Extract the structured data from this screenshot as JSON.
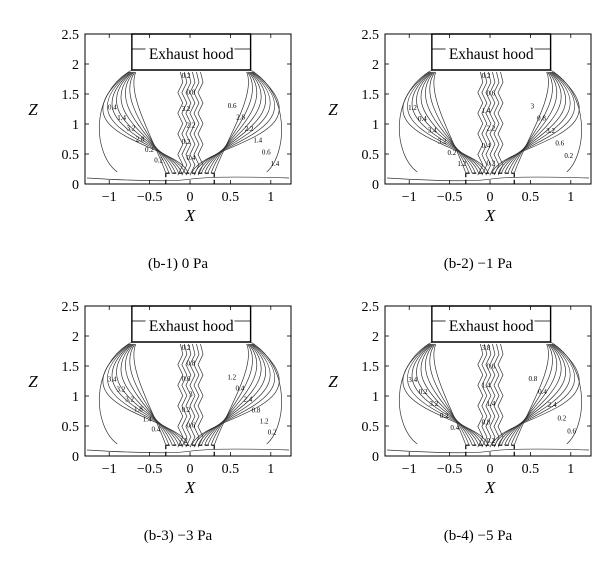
{
  "chart_data": [
    {
      "type": "contour",
      "caption": "(b-1) 0 Pa",
      "hood_label": "Exhaust hood",
      "xlabel": "X",
      "ylabel": "Z",
      "xlim": [
        -1.3,
        1.25
      ],
      "ylim": [
        0,
        2.5
      ],
      "xticks": [
        "-1",
        "-0.5",
        "0",
        "0.5",
        "1"
      ],
      "yticks": [
        "0",
        "0.5",
        "1",
        "1.5",
        "2",
        "2.5"
      ],
      "contour_labels": [
        "0.2",
        "0.4",
        "0.6",
        "0.8",
        "1.4",
        "2.8",
        "3.2",
        "3.2",
        "2.2",
        "2.2",
        "2.8",
        "1.4",
        "0.2",
        "0.2",
        "0.6",
        "0.4",
        "0.2",
        "1.4"
      ]
    },
    {
      "type": "contour",
      "caption": "(b-2) −1 Pa",
      "hood_label": "Exhaust hood",
      "xlabel": "X",
      "ylabel": "Z",
      "xlim": [
        -1.3,
        1.25
      ],
      "ylim": [
        0,
        2.5
      ],
      "xticks": [
        "-1",
        "-0.5",
        "0",
        "0.5",
        "1"
      ],
      "yticks": [
        "0",
        "0.5",
        "1",
        "1.5",
        "2",
        "2.5"
      ],
      "contour_labels": [
        "0.2",
        "1.2",
        "3",
        "0.6",
        "0.4",
        "0.8",
        "1.4",
        "3.4",
        "3.2",
        "2.2",
        "3.2",
        "0.6",
        "0.4",
        "0.2",
        "0.2",
        "0.2",
        "1.2"
      ]
    },
    {
      "type": "contour",
      "caption": "(b-3) −3 Pa",
      "hood_label": "Exhaust hood",
      "xlabel": "X",
      "ylabel": "Z",
      "xlim": [
        -1.3,
        1.25
      ],
      "ylim": [
        0,
        2.5
      ],
      "xticks": [
        "-1",
        "-0.5",
        "0",
        "0.5",
        "1"
      ],
      "yticks": [
        "0",
        "0.5",
        "1",
        "1.5",
        "2",
        "2.5"
      ],
      "contour_labels": [
        "0.2",
        "3.4",
        "1.2",
        "0.8",
        "3.2",
        "0.4",
        "0.6",
        "3.2",
        "2.4",
        "3",
        "1.8",
        "0.8",
        "0.2",
        "1.4",
        "1.2",
        "0.6",
        "0.4",
        "0.2",
        "2"
      ]
    },
    {
      "type": "contour",
      "caption": "(b-4) −5 Pa",
      "hood_label": "Exhaust hood",
      "xlabel": "X",
      "ylabel": "Z",
      "xlim": [
        -1.3,
        1.25
      ],
      "ylim": [
        0,
        2.5
      ],
      "xticks": [
        "-1",
        "-0.5",
        "0",
        "0.5",
        "1"
      ],
      "yticks": [
        "0",
        "0.5",
        "1",
        "1.5",
        "2",
        "2.5"
      ],
      "contour_labels": [
        "3.8",
        "3.4",
        "0.8",
        "0.6",
        "0.2",
        "0.4",
        "1.4",
        "3.2",
        "2.4",
        "1.4",
        "0.2",
        "0.2",
        "0.8",
        "0.4",
        "0.6",
        "0.2"
      ]
    }
  ]
}
